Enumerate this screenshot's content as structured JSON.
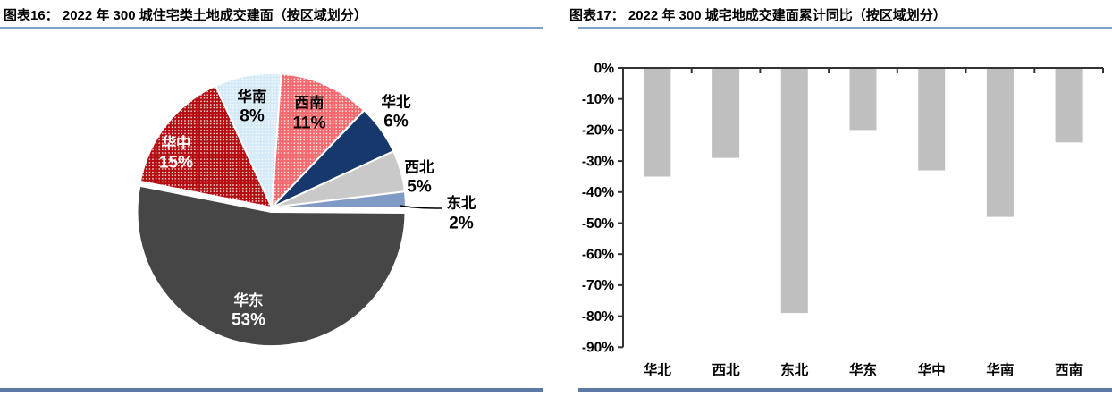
{
  "page": {
    "background": "#ffffff",
    "divider_color": "#5b7ba6",
    "underline_color": "#7ea1c9"
  },
  "left_panel": {
    "title": "图表16： 2022 年 300 城住宅类土地成交建面（按区域划分）"
  },
  "right_panel": {
    "title": "图表17： 2022 年 300 城宅地成交建面累计同比（按区域划分）"
  },
  "chart_data": [
    {
      "type": "pie",
      "title": "2022 年 300 城住宅类土地成交建面（按区域划分）",
      "categories": [
        "西南",
        "华北",
        "西北",
        "东北",
        "华东",
        "华中",
        "华南"
      ],
      "values": [
        11,
        6,
        5,
        2,
        53,
        15,
        8
      ],
      "unit": "%",
      "start_angle_deg": 4,
      "colors": [
        "#f4686e",
        "#17386c",
        "#c9c9c9",
        "#7f9ac5",
        "#464646",
        "#b30b10",
        "#d4eaf7"
      ],
      "dotted": [
        true,
        false,
        false,
        false,
        false,
        true,
        true
      ],
      "label_placement": [
        "inside",
        "outside",
        "outside",
        "leader",
        "inside",
        "inside",
        "inside"
      ],
      "label_text_colors": [
        "#000000",
        "#000000",
        "#000000",
        "#000000",
        "#ffffff",
        "#ffffff",
        "#000000"
      ],
      "slice_border_color": "#ffffff",
      "legend": "none"
    },
    {
      "type": "bar",
      "title": "2022 年 300 城宅地成交建面累计同比（按区域划分）",
      "categories": [
        "华北",
        "西北",
        "东北",
        "华东",
        "华中",
        "华南",
        "西南"
      ],
      "values": [
        -35,
        -29,
        -79,
        -20,
        -33,
        -48,
        -24
      ],
      "unit": "%",
      "ylim": [
        -90,
        0
      ],
      "ytick_step": 10,
      "ytick_labels": [
        "0%",
        "-10%",
        "-20%",
        "-30%",
        "-40%",
        "-50%",
        "-60%",
        "-70%",
        "-80%",
        "-90%"
      ],
      "bar_color": "#bfbfbf",
      "axis_color": "#333333",
      "grid": false,
      "legend": "none"
    }
  ]
}
